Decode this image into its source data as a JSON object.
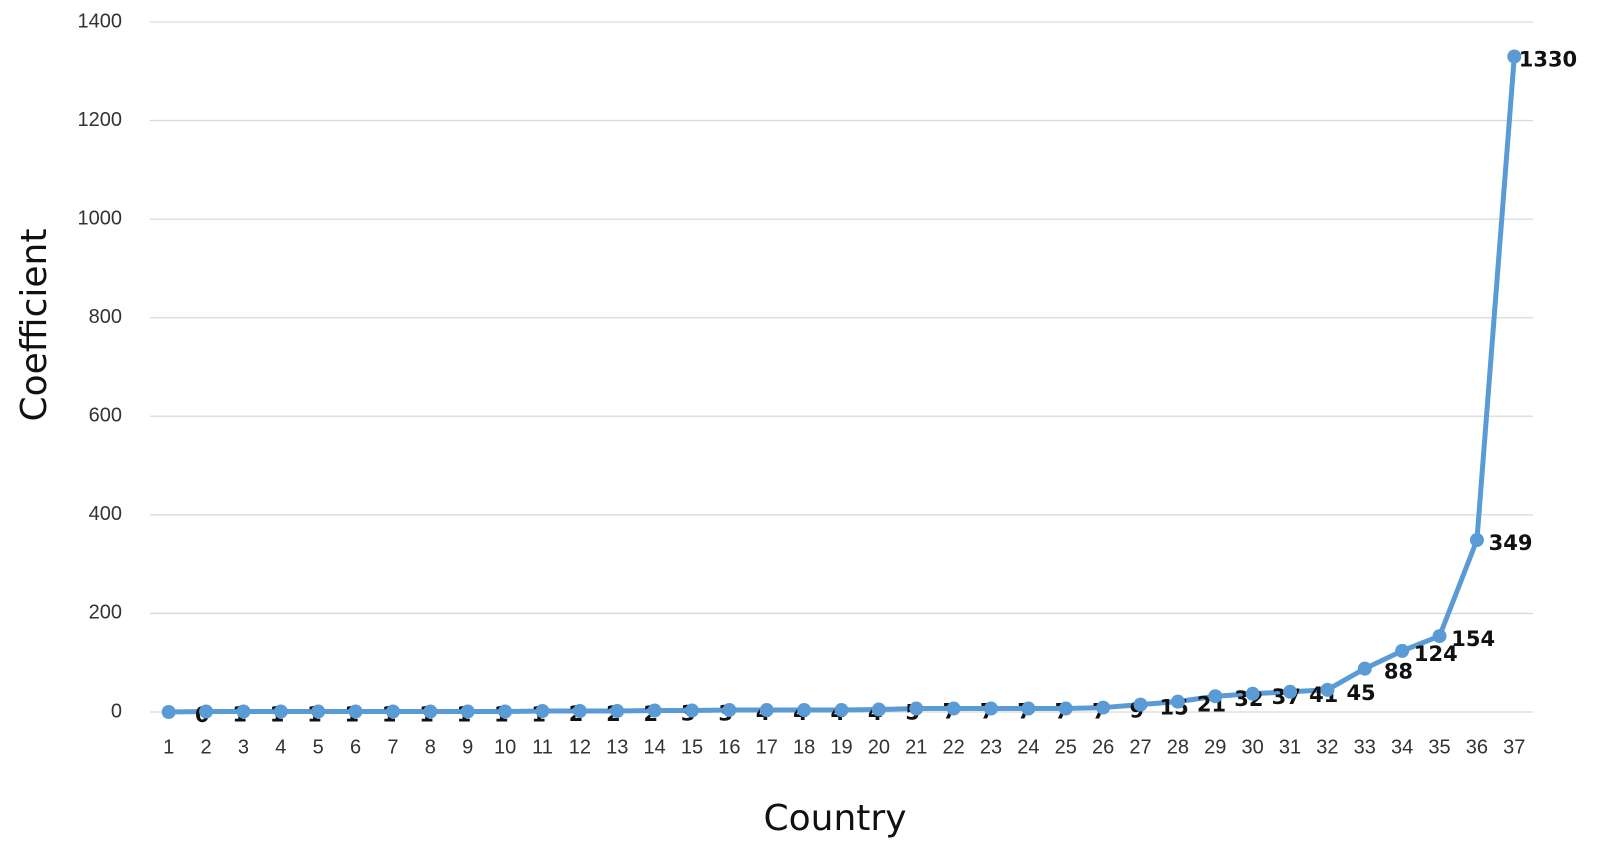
{
  "chart_data": {
    "type": "line",
    "x_label": "Country",
    "y_label": "Coefficient",
    "categories": [
      "1",
      "2",
      "3",
      "4",
      "5",
      "6",
      "7",
      "8",
      "9",
      "10",
      "11",
      "12",
      "13",
      "14",
      "15",
      "16",
      "17",
      "18",
      "19",
      "20",
      "21",
      "22",
      "23",
      "24",
      "25",
      "26",
      "27",
      "28",
      "29",
      "30",
      "31",
      "32",
      "33",
      "34",
      "35",
      "36",
      "37"
    ],
    "values": [
      0,
      1,
      1,
      1,
      1,
      1,
      1,
      1,
      1,
      1,
      2,
      2,
      2,
      3,
      3,
      4,
      4,
      4,
      4,
      5,
      7,
      7,
      7,
      7,
      7,
      9,
      15,
      21,
      32,
      37,
      41,
      45,
      88,
      124,
      154,
      349,
      1330
    ],
    "color": "#5b9bd5",
    "ylim": [
      0,
      1400
    ],
    "yticks": [
      0,
      200,
      400,
      600,
      800,
      1000,
      1200,
      1400
    ],
    "grid": true
  }
}
